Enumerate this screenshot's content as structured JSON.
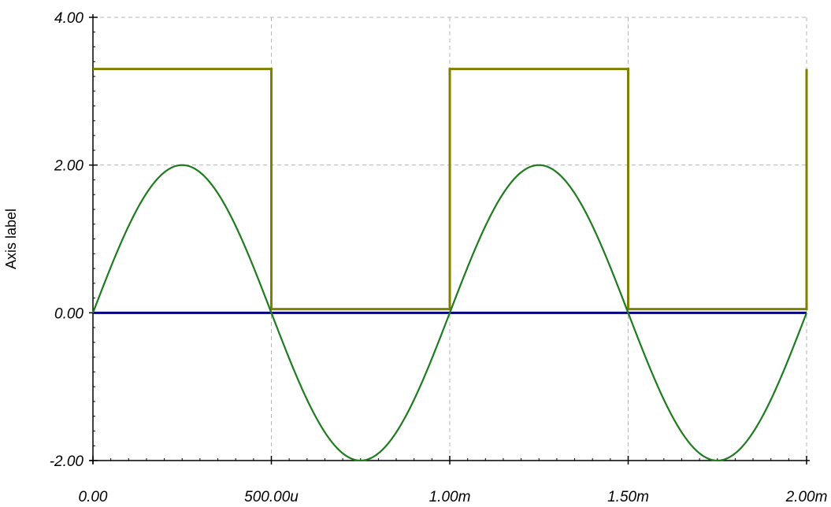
{
  "chart_data": {
    "type": "line",
    "title": "",
    "xlabel": "",
    "ylabel": "Axis label",
    "xlim": [
      0,
      0.002
    ],
    "ylim": [
      -2,
      4
    ],
    "grid": true,
    "legend": "none",
    "x_ticks": [
      0,
      0.0005,
      0.001,
      0.0015,
      0.002
    ],
    "x_tick_labels": [
      "0.00",
      "500.00u",
      "1.00m",
      "1.50m",
      "2.00m"
    ],
    "y_ticks": [
      -2,
      0,
      2,
      4
    ],
    "y_tick_labels": [
      "-2.00",
      "0.00",
      "2.00",
      "4.00"
    ],
    "series": [
      {
        "color": "#808000",
        "style": "step",
        "x": [
          0,
          0.0005,
          0.0005,
          0.001,
          0.001,
          0.0015,
          0.0015,
          0.002,
          0.002
        ],
        "y": [
          3.3,
          3.3,
          0.05,
          0.05,
          3.3,
          3.3,
          0.05,
          0.05,
          3.3
        ]
      },
      {
        "color": "#1e7b1e",
        "style": "sine",
        "amplitude": 2,
        "frequency_hz": 1000,
        "x_range": [
          0,
          0.002
        ]
      },
      {
        "color": "#000080",
        "style": "flat",
        "x": [
          0,
          0.002
        ],
        "y": [
          0,
          0
        ]
      }
    ]
  }
}
